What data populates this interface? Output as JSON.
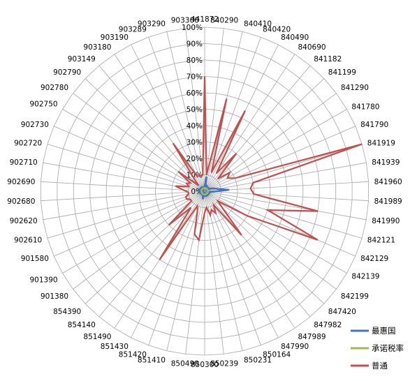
{
  "chart_data": {
    "type": "radar",
    "categories": [
      "441872",
      "840290",
      "840410",
      "840420",
      "840490",
      "840690",
      "841182",
      "841199",
      "841290",
      "841780",
      "841790",
      "841919",
      "841939",
      "841960",
      "841989",
      "841990",
      "842121",
      "842129",
      "842139",
      "842199",
      "847420",
      "847982",
      "847989",
      "847990",
      "850164",
      "850231",
      "850239",
      "850300",
      "850490",
      "851410",
      "851420",
      "851430",
      "851490",
      "854140",
      "854390",
      "901380",
      "901390",
      "901580",
      "902610",
      "902620",
      "902680",
      "902690",
      "902710",
      "902720",
      "902730",
      "902750",
      "902780",
      "902790",
      "903149",
      "903180",
      "903190",
      "903289",
      "903290",
      "903300"
    ],
    "r_ticks": [
      "0%",
      "10%",
      "20%",
      "30%",
      "40%",
      "50%",
      "60%",
      "70%",
      "80%",
      "90%",
      "100%"
    ],
    "r_range": [
      0,
      100
    ],
    "grid": true,
    "legend_position": "bottom-right",
    "series": [
      {
        "name": "最惠国",
        "color": "#4472C4",
        "values": [
          3,
          9,
          2,
          4,
          3,
          2,
          2,
          3,
          3,
          2,
          4,
          6,
          8,
          15,
          5,
          3,
          2,
          3,
          3,
          2,
          2,
          3,
          3,
          2,
          3,
          3,
          2,
          3,
          2,
          5,
          3,
          2,
          3,
          2,
          3,
          2,
          2,
          3,
          3,
          3,
          2,
          3,
          3,
          4,
          2,
          3,
          3,
          2,
          3,
          3,
          2,
          3,
          2,
          2
        ]
      },
      {
        "name": "承诺税率",
        "color": "#9BBB59",
        "values": [
          2,
          2,
          2,
          2,
          2,
          2,
          2,
          2,
          2,
          2,
          2,
          2,
          2,
          2,
          2,
          2,
          2,
          2,
          2,
          2,
          2,
          2,
          2,
          2,
          2,
          2,
          2,
          2,
          2,
          2,
          2,
          2,
          2,
          2,
          2,
          2,
          2,
          2,
          2,
          2,
          2,
          2,
          2,
          2,
          2,
          2,
          2,
          2,
          2,
          2,
          2,
          2,
          2,
          2
        ]
      },
      {
        "name": "普通",
        "color": "#C0504D",
        "values": [
          70,
          10,
          58,
          12,
          55,
          13,
          30,
          11,
          19,
          16,
          20,
          100,
          30,
          28,
          30,
          70,
          40,
          75,
          30,
          10,
          15,
          35,
          10,
          15,
          12,
          15,
          10,
          13,
          30,
          27,
          13,
          10,
          50,
          13,
          30,
          10,
          10,
          12,
          12,
          10,
          10,
          13,
          18,
          10,
          12,
          10,
          20,
          5,
          10,
          35,
          10,
          10,
          10,
          10
        ]
      }
    ]
  }
}
